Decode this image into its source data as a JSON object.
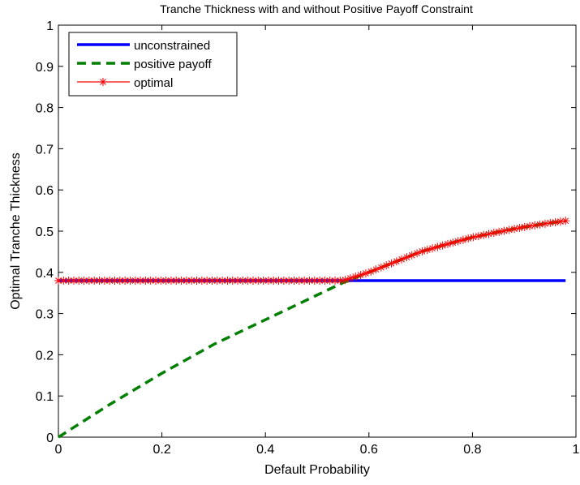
{
  "chart_data": {
    "type": "line",
    "title": "Tranche Thickness with and without Positive Payoff Constraint",
    "xlabel": "Default Probability",
    "ylabel": "Optimal Tranche Thickness",
    "xlim": [
      0,
      1
    ],
    "ylim": [
      0,
      1
    ],
    "x_ticks": [
      0,
      0.2,
      0.4,
      0.6,
      0.8,
      1
    ],
    "x_tick_labels": [
      "0",
      "0.2",
      "0.4",
      "0.6",
      "0.8",
      "1"
    ],
    "y_ticks": [
      0,
      0.1,
      0.2,
      0.3,
      0.4,
      0.5,
      0.6,
      0.7,
      0.8,
      0.9,
      1
    ],
    "y_tick_labels": [
      "0",
      "0.1",
      "0.2",
      "0.3",
      "0.4",
      "0.5",
      "0.6",
      "0.7",
      "0.8",
      "0.9",
      "1"
    ],
    "grid": false,
    "legend_position": "top-left",
    "series": [
      {
        "name": "unconstrained",
        "color": "#0000ff",
        "style": "solid",
        "x": [
          0,
          0.1,
          0.2,
          0.3,
          0.4,
          0.5,
          0.6,
          0.7,
          0.8,
          0.9,
          0.98
        ],
        "y": [
          0.38,
          0.38,
          0.38,
          0.38,
          0.38,
          0.38,
          0.38,
          0.38,
          0.38,
          0.38,
          0.38
        ]
      },
      {
        "name": "positive payoff",
        "color": "#007f00",
        "style": "dashed",
        "x": [
          0,
          0.1,
          0.2,
          0.3,
          0.4,
          0.5,
          0.55,
          0.6,
          0.65,
          0.7,
          0.75,
          0.8,
          0.85,
          0.9,
          0.95,
          0.98
        ],
        "y": [
          0,
          0.08,
          0.155,
          0.225,
          0.285,
          0.345,
          0.375,
          0.4,
          0.425,
          0.45,
          0.468,
          0.485,
          0.498,
          0.51,
          0.52,
          0.525
        ]
      },
      {
        "name": "optimal",
        "color": "#ff0000",
        "style": "solid-star",
        "x": [
          0,
          0.1,
          0.2,
          0.3,
          0.4,
          0.5,
          0.55,
          0.6,
          0.65,
          0.7,
          0.75,
          0.8,
          0.85,
          0.9,
          0.95,
          0.98
        ],
        "y": [
          0.38,
          0.38,
          0.38,
          0.38,
          0.38,
          0.38,
          0.38,
          0.4,
          0.425,
          0.45,
          0.468,
          0.485,
          0.498,
          0.51,
          0.52,
          0.525
        ],
        "marker_count": 100
      }
    ]
  }
}
